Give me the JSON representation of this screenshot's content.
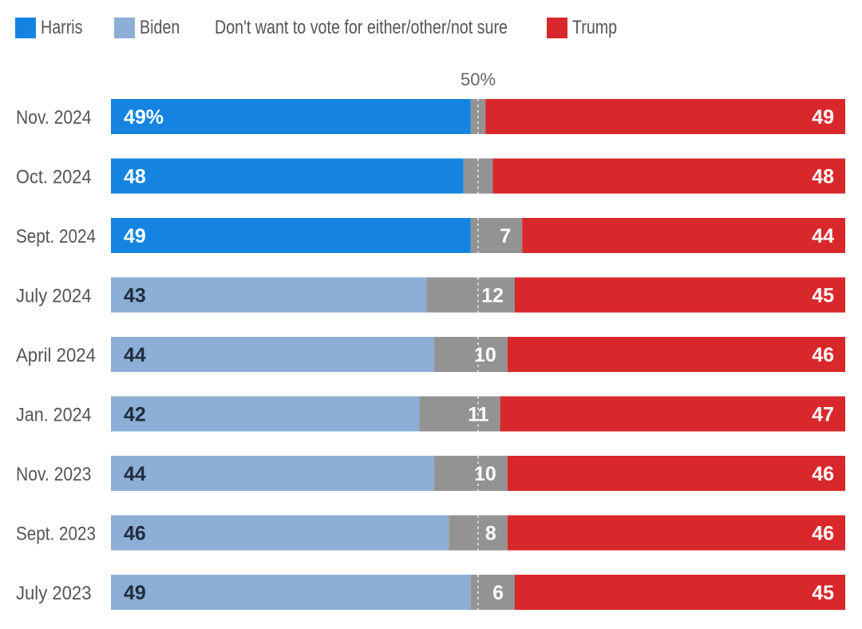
{
  "chart_data": {
    "type": "bar",
    "orientation": "horizontal-stacked-100",
    "title": "",
    "xlabel": "",
    "ylabel": "",
    "xlim": [
      0,
      100
    ],
    "reference_line": {
      "value": 50,
      "label": "50%"
    },
    "legend": {
      "placement": "top-left",
      "entries": [
        {
          "key": "harris",
          "label": "Harris",
          "color": "#1484e0"
        },
        {
          "key": "biden",
          "label": "Biden",
          "color": "#8daed6"
        },
        {
          "key": "other",
          "label": "Don't want to vote for either/other/not sure",
          "color": "#939393"
        },
        {
          "key": "trump",
          "label": "Trump",
          "color": "#d9282b"
        }
      ]
    },
    "categories": [
      "Nov. 2024",
      "Oct. 2024",
      "Sept. 2024",
      "July 2024",
      "April 2024",
      "Jan. 2024",
      "Nov. 2023",
      "Sept. 2023",
      "July 2023"
    ],
    "rows": [
      {
        "category": "Nov. 2024",
        "dem_candidate": "harris",
        "dem": 49,
        "other": 2,
        "trump": 49,
        "dem_label": "49%",
        "other_label": "",
        "trump_label": "49"
      },
      {
        "category": "Oct. 2024",
        "dem_candidate": "harris",
        "dem": 48,
        "other": 4,
        "trump": 48,
        "dem_label": "48",
        "other_label": "",
        "trump_label": "48"
      },
      {
        "category": "Sept. 2024",
        "dem_candidate": "harris",
        "dem": 49,
        "other": 7,
        "trump": 44,
        "dem_label": "49",
        "other_label": "7",
        "trump_label": "44"
      },
      {
        "category": "July 2024",
        "dem_candidate": "biden",
        "dem": 43,
        "other": 12,
        "trump": 45,
        "dem_label": "43",
        "other_label": "12",
        "trump_label": "45"
      },
      {
        "category": "April 2024",
        "dem_candidate": "biden",
        "dem": 44,
        "other": 10,
        "trump": 46,
        "dem_label": "44",
        "other_label": "10",
        "trump_label": "46"
      },
      {
        "category": "Jan. 2024",
        "dem_candidate": "biden",
        "dem": 42,
        "other": 11,
        "trump": 47,
        "dem_label": "42",
        "other_label": "11",
        "trump_label": "47"
      },
      {
        "category": "Nov. 2023",
        "dem_candidate": "biden",
        "dem": 44,
        "other": 10,
        "trump": 46,
        "dem_label": "44",
        "other_label": "10",
        "trump_label": "46"
      },
      {
        "category": "Sept. 2023",
        "dem_candidate": "biden",
        "dem": 46,
        "other": 8,
        "trump": 46,
        "dem_label": "46",
        "other_label": "8",
        "trump_label": "46"
      },
      {
        "category": "July 2023",
        "dem_candidate": "biden",
        "dem": 49,
        "other": 6,
        "trump": 45,
        "dem_label": "49",
        "other_label": "6",
        "trump_label": "45"
      }
    ],
    "label_colors": {
      "harris": "#ffffff",
      "biden": "#1f2d3d",
      "other": "#ffffff",
      "trump": "#ffffff"
    },
    "grid": false
  }
}
